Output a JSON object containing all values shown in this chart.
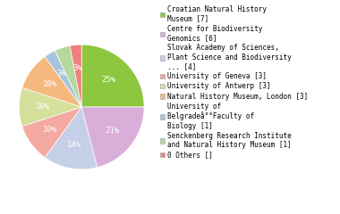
{
  "legend_labels": [
    "Croatian Natural History\nMuseum [7]",
    "Centre for Biodiversity\nGenomics [6]",
    "Slovak Academy of Sciences,\nPlant Science and Biodiversity\n... [4]",
    "University of Geneva [3]",
    "University of Antwerp [3]",
    "Natural History Museum, London [3]",
    "University of\nBelgradeå°°Faculty of\nBiology [1]",
    "Senckenberg Research Institute\nand Natural History Museum [1]",
    "0 Others []"
  ],
  "values": [
    25,
    21,
    14,
    10,
    10,
    10,
    3,
    4,
    3
  ],
  "colors": [
    "#8dc63f",
    "#d9afd9",
    "#c5cfe8",
    "#f4a9a0",
    "#d4e09b",
    "#f5b97e",
    "#a8c4dc",
    "#b5d99c",
    "#f08080"
  ],
  "pct_labels": [
    "25%",
    "21%",
    "14%",
    "10%",
    "10%",
    "10%",
    "3%",
    "4%",
    "3%"
  ],
  "show_pct": [
    true,
    true,
    true,
    true,
    true,
    true,
    true,
    false,
    true
  ],
  "background_color": "#ffffff",
  "text_color": "#ffffff",
  "fontsize": 6.5,
  "legend_fontsize": 5.5
}
